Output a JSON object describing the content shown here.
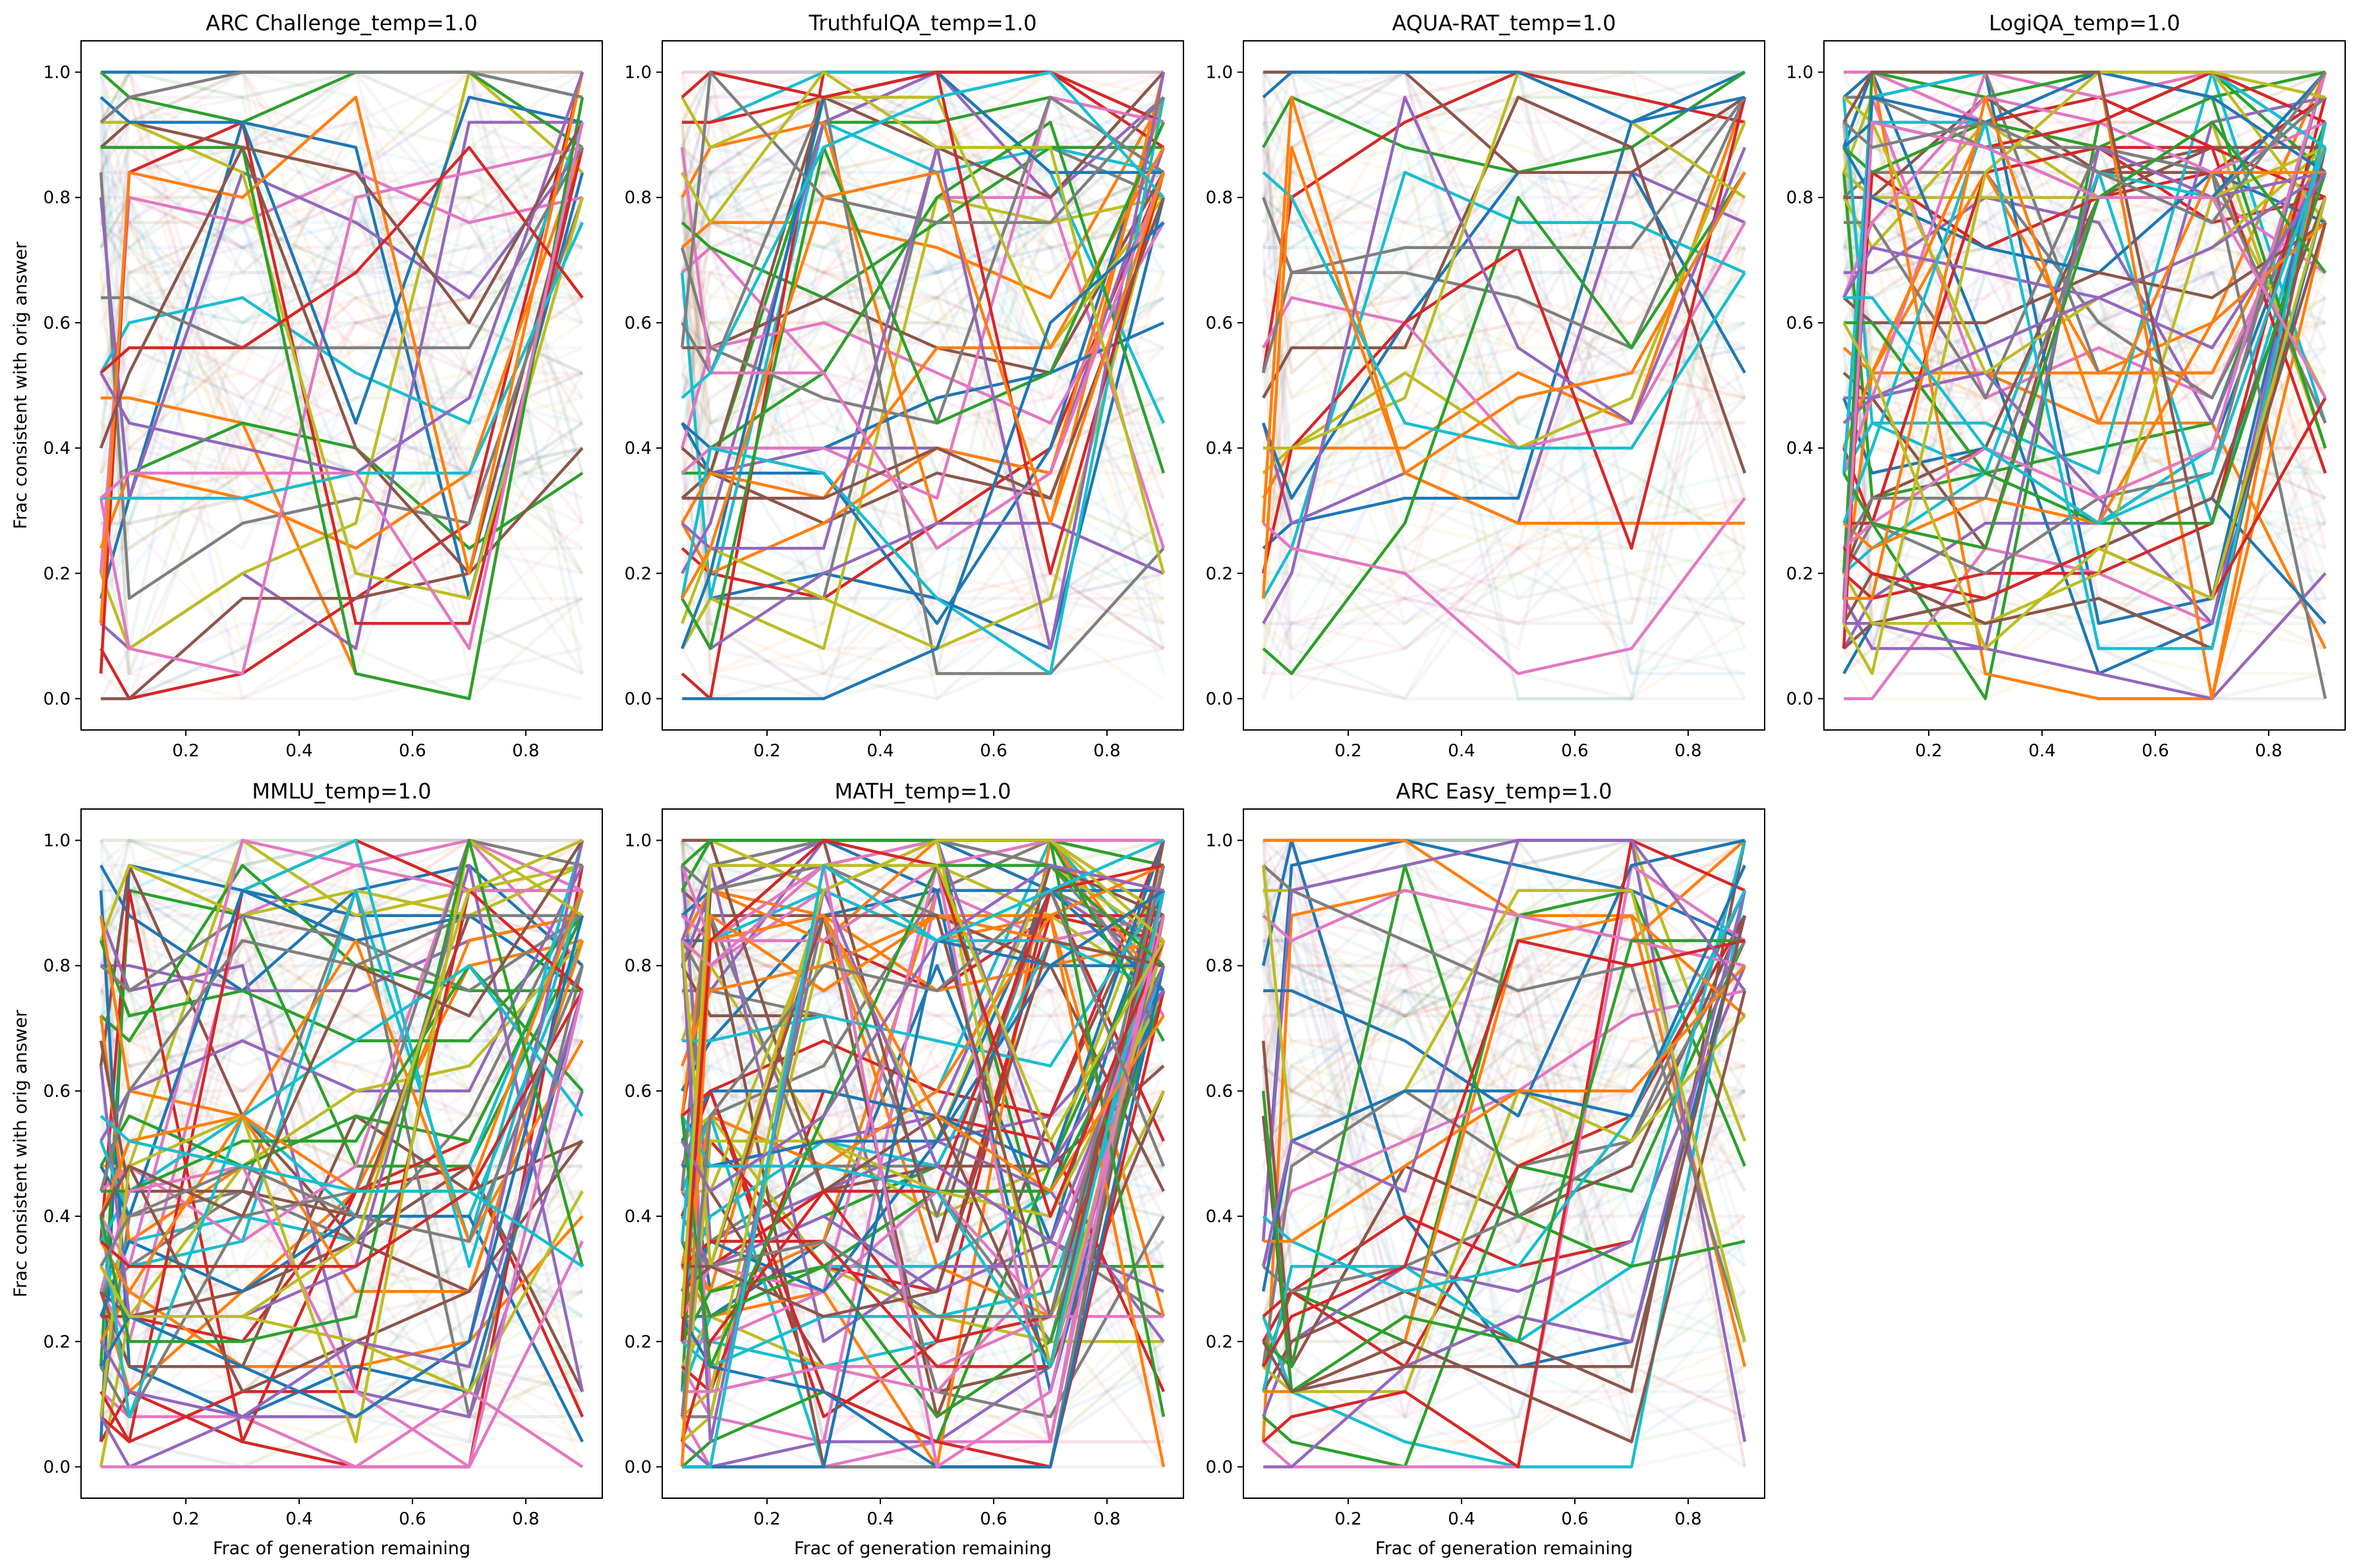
{
  "figure": {
    "type": "line-small-multiples",
    "x_label": "Frac of generation remaining",
    "y_label": "Frac consistent with orig answer"
  },
  "chart_data": [
    {
      "type": "line",
      "title": "ARC Challenge_temp=1.0",
      "xlabel": "",
      "ylabel": "Frac consistent with orig answer",
      "x": [
        0.05,
        0.1,
        0.3,
        0.5,
        0.7,
        0.9
      ],
      "xlim": [
        0.015,
        0.935
      ],
      "ylim": [
        -0.05,
        1.05
      ],
      "xticks": [
        0.2,
        0.4,
        0.6,
        0.8
      ],
      "yticks": [
        0.0,
        0.2,
        0.4,
        0.6,
        0.8,
        1.0
      ],
      "n_highlighted": 28,
      "n_faint": 110
    },
    {
      "type": "line",
      "title": "TruthfulQA_temp=1.0",
      "xlabel": "",
      "ylabel": "",
      "x": [
        0.05,
        0.1,
        0.3,
        0.5,
        0.7,
        0.9
      ],
      "xlim": [
        0.015,
        0.935
      ],
      "ylim": [
        -0.05,
        1.05
      ],
      "xticks": [
        0.2,
        0.4,
        0.6,
        0.8
      ],
      "yticks": [
        0.0,
        0.2,
        0.4,
        0.6,
        0.8,
        1.0
      ],
      "n_highlighted": 42,
      "n_faint": 110
    },
    {
      "type": "line",
      "title": "AQUA-RAT_temp=1.0",
      "xlabel": "",
      "ylabel": "",
      "x": [
        0.05,
        0.1,
        0.3,
        0.5,
        0.7,
        0.9
      ],
      "xlim": [
        0.015,
        0.935
      ],
      "ylim": [
        -0.05,
        1.05
      ],
      "xticks": [
        0.2,
        0.4,
        0.6,
        0.8
      ],
      "yticks": [
        0.0,
        0.2,
        0.4,
        0.6,
        0.8,
        1.0
      ],
      "n_highlighted": 22,
      "n_faint": 90
    },
    {
      "type": "line",
      "title": "LogiQA_temp=1.0",
      "xlabel": "",
      "ylabel": "",
      "x": [
        0.05,
        0.1,
        0.3,
        0.5,
        0.7,
        0.9
      ],
      "xlim": [
        0.015,
        0.935
      ],
      "ylim": [
        -0.05,
        1.05
      ],
      "xticks": [
        0.2,
        0.4,
        0.6,
        0.8
      ],
      "yticks": [
        0.0,
        0.2,
        0.4,
        0.6,
        0.8,
        1.0
      ],
      "n_highlighted": 70,
      "n_faint": 110
    },
    {
      "type": "line",
      "title": "MMLU_temp=1.0",
      "xlabel": "Frac of generation remaining",
      "ylabel": "Frac consistent with orig answer",
      "x": [
        0.05,
        0.1,
        0.3,
        0.5,
        0.7,
        0.9
      ],
      "xlim": [
        0.015,
        0.935
      ],
      "ylim": [
        -0.05,
        1.05
      ],
      "xticks": [
        0.2,
        0.4,
        0.6,
        0.8
      ],
      "yticks": [
        0.0,
        0.2,
        0.4,
        0.6,
        0.8,
        1.0
      ],
      "n_highlighted": 60,
      "n_faint": 110
    },
    {
      "type": "line",
      "title": "MATH_temp=1.0",
      "xlabel": "Frac of generation remaining",
      "ylabel": "",
      "x": [
        0.05,
        0.1,
        0.3,
        0.5,
        0.7,
        0.9
      ],
      "xlim": [
        0.015,
        0.935
      ],
      "ylim": [
        -0.05,
        1.05
      ],
      "xticks": [
        0.2,
        0.4,
        0.6,
        0.8
      ],
      "yticks": [
        0.0,
        0.2,
        0.4,
        0.6,
        0.8,
        1.0
      ],
      "n_highlighted": 100,
      "n_faint": 120
    },
    {
      "type": "line",
      "title": "ARC Easy_temp=1.0",
      "xlabel": "Frac of generation remaining",
      "ylabel": "",
      "x": [
        0.05,
        0.1,
        0.3,
        0.5,
        0.7,
        0.9
      ],
      "xlim": [
        0.015,
        0.935
      ],
      "ylim": [
        -0.05,
        1.05
      ],
      "xticks": [
        0.2,
        0.4,
        0.6,
        0.8
      ],
      "yticks": [
        0.0,
        0.2,
        0.4,
        0.6,
        0.8,
        1.0
      ],
      "n_highlighted": 36,
      "n_faint": 110
    }
  ],
  "colors": [
    "#1f77b4",
    "#ff7f0e",
    "#2ca02c",
    "#d62728",
    "#9467bd",
    "#8c564b",
    "#e377c2",
    "#7f7f7f",
    "#bcbd22",
    "#17becf"
  ]
}
